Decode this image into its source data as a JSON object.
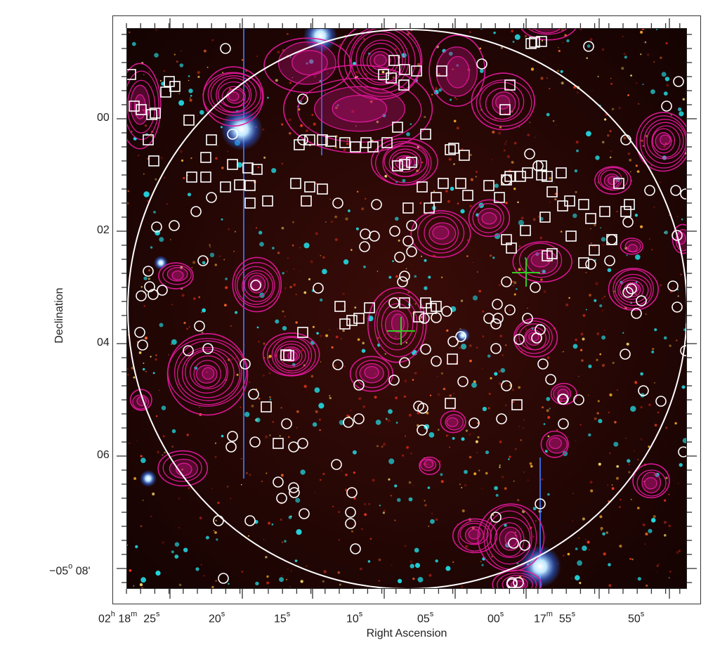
{
  "figure": {
    "x_axis_label": "Right Ascension",
    "y_axis_label": "Declination",
    "x_ticks": [
      {
        "hours": "02",
        "h_unit": "h",
        "minutes": "18",
        "m_unit": "m",
        "text": "25",
        "unit": "s"
      },
      {
        "text": "20",
        "unit": "s"
      },
      {
        "text": "15",
        "unit": "s"
      },
      {
        "text": "10",
        "unit": "s"
      },
      {
        "text": "05",
        "unit": "s"
      },
      {
        "text": "00",
        "unit": "s"
      },
      {
        "minutes": "17",
        "m_unit": "m",
        "text": "55",
        "unit": "s"
      },
      {
        "text": "50",
        "unit": "s"
      }
    ],
    "y_ticks": [
      {
        "text": "00"
      },
      {
        "text": "02"
      },
      {
        "text": "04"
      },
      {
        "text": "06"
      },
      {
        "text": "−05",
        "deg": "o",
        "minutes": "08'"
      }
    ],
    "colors": {
      "sky_background": "#1a0604",
      "contours": "#e0189a",
      "markers": "#ffffff",
      "crosshair": "#33cc22",
      "bright_sources": "#22d8e0"
    }
  }
}
